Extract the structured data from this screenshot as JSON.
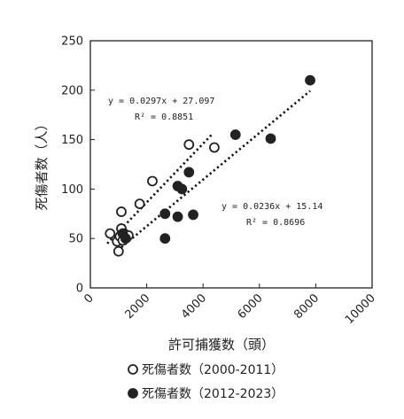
{
  "chart_data": {
    "type": "scatter",
    "xlabel": "許可捕獲数（頭）",
    "ylabel": "死傷者数（人）",
    "xlim": [
      0,
      10000
    ],
    "ylim": [
      0,
      250
    ],
    "x_ticks": [
      "0",
      "2000",
      "4000",
      "6000",
      "8000",
      "10000"
    ],
    "y_ticks": [
      "0",
      "50",
      "100",
      "150",
      "200",
      "250"
    ],
    "grid": false,
    "legend_position": "bottom",
    "series": [
      {
        "name": "死傷者数（2000-2011）",
        "marker": "open-circle",
        "color": "#222222",
        "points": [
          {
            "x": 700,
            "y": 55
          },
          {
            "x": 950,
            "y": 47
          },
          {
            "x": 1000,
            "y": 37
          },
          {
            "x": 1050,
            "y": 52
          },
          {
            "x": 1100,
            "y": 60
          },
          {
            "x": 1100,
            "y": 77
          },
          {
            "x": 1150,
            "y": 48
          },
          {
            "x": 1200,
            "y": 55
          },
          {
            "x": 1250,
            "y": 53
          },
          {
            "x": 1350,
            "y": 53
          },
          {
            "x": 1750,
            "y": 85
          },
          {
            "x": 2200,
            "y": 108
          },
          {
            "x": 3500,
            "y": 145
          },
          {
            "x": 4400,
            "y": 142
          }
        ],
        "trendline": {
          "slope": 0.0297,
          "intercept": 27.097,
          "x_range": [
            600,
            4300
          ],
          "equation": "y = 0.0297x + 27.097",
          "r2": "R² = 0.8851"
        }
      },
      {
        "name": "死傷者数（2012-2023）",
        "marker": "filled-circle",
        "color": "#222222",
        "points": [
          {
            "x": 1150,
            "y": 55
          },
          {
            "x": 1250,
            "y": 50
          },
          {
            "x": 2650,
            "y": 75
          },
          {
            "x": 2650,
            "y": 50
          },
          {
            "x": 3100,
            "y": 72
          },
          {
            "x": 3100,
            "y": 103
          },
          {
            "x": 3250,
            "y": 100
          },
          {
            "x": 3500,
            "y": 117
          },
          {
            "x": 3650,
            "y": 74
          },
          {
            "x": 5150,
            "y": 155
          },
          {
            "x": 6400,
            "y": 151
          },
          {
            "x": 7800,
            "y": 210
          }
        ],
        "trendline": {
          "slope": 0.0236,
          "intercept": 15.14,
          "x_range": [
            1100,
            7800
          ],
          "equation": "y = 0.0236x + 15.14",
          "r2": "R² = 0.8696"
        }
      }
    ]
  }
}
